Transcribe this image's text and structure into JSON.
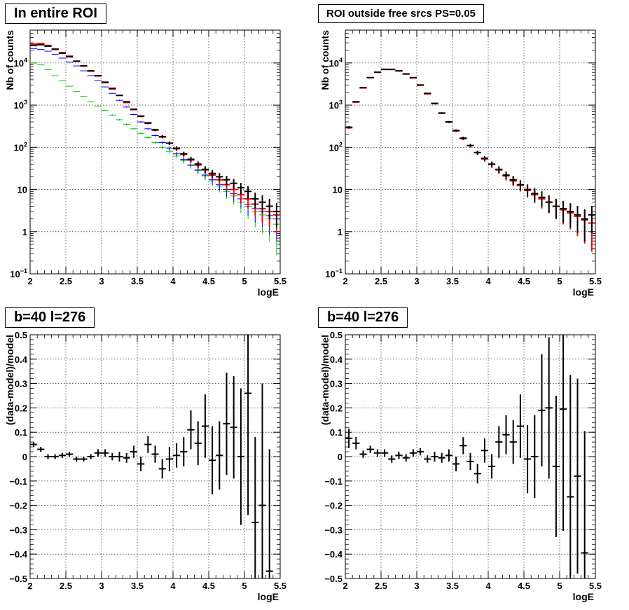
{
  "charts": [
    {
      "title": "In entire ROI",
      "xlabel": "logE",
      "ylabel": "Nb of counts"
    },
    {
      "title": "ROI outside free srcs PS=0.05",
      "xlabel": "logE",
      "ylabel": "Nb of counts"
    },
    {
      "title": "b=40 l=276",
      "xlabel": "logE",
      "ylabel": "(data-model)/model"
    },
    {
      "title": "b=40 l=276",
      "xlabel": "logE",
      "ylabel": "(data-model)/model"
    }
  ],
  "colors": {
    "data": "#000000",
    "model": "#ff0000",
    "blue": "#0000ff",
    "green": "#00cc00",
    "grid": "#000000"
  },
  "chart_data": [
    {
      "type": "line",
      "title": "In entire ROI",
      "xlabel": "logE",
      "ylabel": "Nb of counts",
      "xlim": [
        2,
        5.5
      ],
      "ylim": [
        0.1,
        60000
      ],
      "yscale": "log",
      "grid": true,
      "x": [
        2.05,
        2.15,
        2.25,
        2.35,
        2.45,
        2.55,
        2.65,
        2.75,
        2.85,
        2.95,
        3.05,
        3.15,
        3.25,
        3.35,
        3.45,
        3.55,
        3.65,
        3.75,
        3.85,
        3.95,
        4.05,
        4.15,
        4.25,
        4.35,
        4.45,
        4.55,
        4.65,
        4.75,
        4.85,
        4.95,
        5.05,
        5.15,
        5.25,
        5.35,
        5.45
      ],
      "series": [
        {
          "values": [
            26000,
            27000,
            25000,
            21000,
            17000,
            14000,
            11000,
            8500,
            6500,
            5000,
            3500,
            2500,
            1700,
            1200,
            800,
            550,
            380,
            260,
            180,
            125,
            95,
            70,
            52,
            40,
            30,
            24,
            20,
            17,
            14,
            11,
            9,
            6,
            5,
            4,
            3
          ]
        },
        {
          "values": [
            28000,
            29000,
            26000,
            21500,
            17500,
            14500,
            11000,
            8500,
            6400,
            4900,
            3400,
            2400,
            1700,
            1150,
            780,
            540,
            370,
            255,
            175,
            125,
            92,
            68,
            50,
            38,
            29,
            22,
            17,
            13,
            10,
            7.5,
            6,
            4.5,
            3.5,
            3,
            2.5
          ]
        },
        {
          "values": [
            22000,
            21000,
            19000,
            16000,
            13000,
            10500,
            8500,
            6500,
            5000,
            3800,
            2700,
            1900,
            1300,
            900,
            600,
            400,
            275,
            190,
            130,
            95,
            70,
            52,
            38,
            29,
            22,
            17,
            13,
            10,
            8,
            6,
            4.5,
            3.5,
            3,
            2.4,
            2
          ]
        },
        {
          "values": [
            10000,
            9000,
            7000,
            5000,
            3800,
            2800,
            2100,
            1600,
            1200,
            950,
            750,
            580,
            450,
            350,
            275,
            215,
            170,
            130,
            100,
            80,
            62,
            48,
            37,
            28,
            21,
            16,
            12,
            9,
            7,
            5,
            4,
            3,
            2.5,
            2,
            1.5
          ]
        }
      ]
    },
    {
      "type": "line",
      "title": "ROI outside free srcs PS=0.05",
      "xlabel": "logE",
      "ylabel": "Nb of counts",
      "xlim": [
        2,
        5.5
      ],
      "ylim": [
        0.1,
        60000
      ],
      "yscale": "log",
      "grid": true,
      "x": [
        2.05,
        2.15,
        2.25,
        2.35,
        2.45,
        2.55,
        2.65,
        2.75,
        2.85,
        2.95,
        3.05,
        3.15,
        3.25,
        3.35,
        3.45,
        3.55,
        3.65,
        3.75,
        3.85,
        3.95,
        4.05,
        4.15,
        4.25,
        4.35,
        4.45,
        4.55,
        4.65,
        4.75,
        4.85,
        4.95,
        5.05,
        5.15,
        5.25,
        5.35,
        5.45
      ],
      "series": [
        {
          "values": [
            300,
            1200,
            2600,
            4500,
            6000,
            7000,
            7000,
            6500,
            5500,
            4500,
            3000,
            1900,
            1100,
            650,
            400,
            250,
            165,
            110,
            75,
            55,
            40,
            30,
            22,
            17,
            13,
            10,
            8,
            6.5,
            5,
            4,
            3.5,
            3,
            2.5,
            2,
            2.5
          ]
        },
        {
          "values": [
            290,
            1180,
            2550,
            4450,
            6050,
            7100,
            7050,
            6450,
            5450,
            4400,
            2950,
            1850,
            1080,
            640,
            395,
            245,
            160,
            110,
            75,
            53,
            39,
            29,
            21,
            16,
            12.5,
            9.5,
            7.5,
            6,
            5,
            4,
            3.3,
            2.8,
            2.3,
            1.9,
            1.6
          ]
        }
      ]
    },
    {
      "type": "scatter",
      "title": "b=40 l=276",
      "xlabel": "logE",
      "ylabel": "(data-model)/model",
      "xlim": [
        2,
        5.5
      ],
      "ylim": [
        -0.5,
        0.5
      ],
      "grid": true,
      "x": [
        2.05,
        2.15,
        2.25,
        2.35,
        2.45,
        2.55,
        2.65,
        2.75,
        2.85,
        2.95,
        3.05,
        3.15,
        3.25,
        3.35,
        3.45,
        3.55,
        3.65,
        3.75,
        3.85,
        3.95,
        4.05,
        4.15,
        4.25,
        4.35,
        4.45,
        4.55,
        4.65,
        4.75,
        4.85,
        4.95,
        5.05,
        5.15,
        5.25,
        5.35
      ],
      "values": [
        0.05,
        0.03,
        0.0,
        0.0,
        0.005,
        0.01,
        -0.01,
        -0.01,
        0.0,
        0.015,
        0.015,
        0.0,
        0.0,
        -0.005,
        0.02,
        -0.03,
        0.05,
        0.01,
        -0.05,
        -0.01,
        0.005,
        0.02,
        0.11,
        0.055,
        0.125,
        -0.015,
        0.005,
        0.135,
        0.12,
        0.0,
        0.26,
        -0.27,
        -0.2,
        -0.47
      ],
      "errors": [
        0.01,
        0.01,
        0.01,
        0.01,
        0.01,
        0.01,
        0.01,
        0.01,
        0.01,
        0.015,
        0.015,
        0.015,
        0.02,
        0.02,
        0.025,
        0.03,
        0.035,
        0.035,
        0.04,
        0.05,
        0.05,
        0.06,
        0.08,
        0.09,
        0.13,
        0.14,
        0.14,
        0.21,
        0.21,
        0.28,
        0.5,
        0.35,
        0.5,
        0.5
      ]
    },
    {
      "type": "scatter",
      "title": "b=40 l=276",
      "xlabel": "logE",
      "ylabel": "(data-model)/model",
      "xlim": [
        2,
        5.5
      ],
      "ylim": [
        -0.5,
        0.5
      ],
      "grid": true,
      "x": [
        2.05,
        2.15,
        2.25,
        2.35,
        2.45,
        2.55,
        2.65,
        2.75,
        2.85,
        2.95,
        3.05,
        3.15,
        3.25,
        3.35,
        3.45,
        3.55,
        3.65,
        3.75,
        3.85,
        3.95,
        4.05,
        4.15,
        4.25,
        4.35,
        4.45,
        4.55,
        4.65,
        4.75,
        4.85,
        4.95,
        5.05,
        5.15,
        5.25,
        5.35
      ],
      "values": [
        0.075,
        0.055,
        0.01,
        0.03,
        0.015,
        0.015,
        -0.01,
        0.005,
        -0.005,
        0.015,
        0.02,
        -0.01,
        0.0,
        -0.005,
        0.005,
        -0.03,
        0.045,
        -0.02,
        -0.07,
        0.025,
        -0.04,
        0.06,
        0.09,
        0.06,
        0.125,
        -0.01,
        0.0,
        0.19,
        0.2,
        -0.04,
        0.195,
        -0.165,
        -0.08,
        -0.395
      ],
      "errors": [
        0.04,
        0.025,
        0.015,
        0.015,
        0.015,
        0.015,
        0.015,
        0.015,
        0.015,
        0.015,
        0.015,
        0.015,
        0.02,
        0.02,
        0.025,
        0.03,
        0.035,
        0.035,
        0.04,
        0.05,
        0.05,
        0.065,
        0.08,
        0.09,
        0.13,
        0.14,
        0.17,
        0.23,
        0.29,
        0.29,
        0.5,
        0.5,
        0.4,
        0.5
      ]
    }
  ]
}
